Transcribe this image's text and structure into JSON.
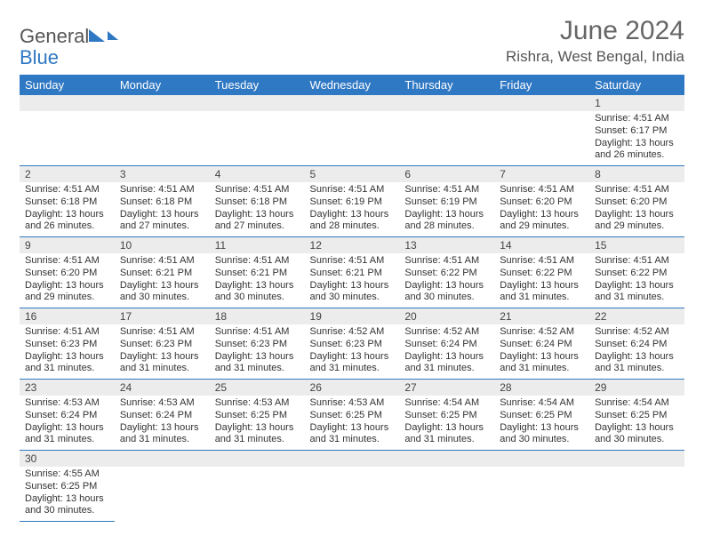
{
  "logo": {
    "part1": "General",
    "part2": "Blue"
  },
  "title": {
    "month": "June 2024",
    "location": "Rishra, West Bengal, India"
  },
  "colors": {
    "header_bg": "#2f78c3",
    "header_fg": "#ffffff",
    "rule": "#2f78c3",
    "numrow_bg": "#ececec",
    "text": "#333333"
  },
  "day_headers": [
    "Sunday",
    "Monday",
    "Tuesday",
    "Wednesday",
    "Thursday",
    "Friday",
    "Saturday"
  ],
  "weeks": [
    [
      null,
      null,
      null,
      null,
      null,
      null,
      {
        "n": "1",
        "sr": "4:51 AM",
        "ss": "6:17 PM",
        "dl": "13 hours and 26 minutes."
      }
    ],
    [
      {
        "n": "2",
        "sr": "4:51 AM",
        "ss": "6:18 PM",
        "dl": "13 hours and 26 minutes."
      },
      {
        "n": "3",
        "sr": "4:51 AM",
        "ss": "6:18 PM",
        "dl": "13 hours and 27 minutes."
      },
      {
        "n": "4",
        "sr": "4:51 AM",
        "ss": "6:18 PM",
        "dl": "13 hours and 27 minutes."
      },
      {
        "n": "5",
        "sr": "4:51 AM",
        "ss": "6:19 PM",
        "dl": "13 hours and 28 minutes."
      },
      {
        "n": "6",
        "sr": "4:51 AM",
        "ss": "6:19 PM",
        "dl": "13 hours and 28 minutes."
      },
      {
        "n": "7",
        "sr": "4:51 AM",
        "ss": "6:20 PM",
        "dl": "13 hours and 29 minutes."
      },
      {
        "n": "8",
        "sr": "4:51 AM",
        "ss": "6:20 PM",
        "dl": "13 hours and 29 minutes."
      }
    ],
    [
      {
        "n": "9",
        "sr": "4:51 AM",
        "ss": "6:20 PM",
        "dl": "13 hours and 29 minutes."
      },
      {
        "n": "10",
        "sr": "4:51 AM",
        "ss": "6:21 PM",
        "dl": "13 hours and 30 minutes."
      },
      {
        "n": "11",
        "sr": "4:51 AM",
        "ss": "6:21 PM",
        "dl": "13 hours and 30 minutes."
      },
      {
        "n": "12",
        "sr": "4:51 AM",
        "ss": "6:21 PM",
        "dl": "13 hours and 30 minutes."
      },
      {
        "n": "13",
        "sr": "4:51 AM",
        "ss": "6:22 PM",
        "dl": "13 hours and 30 minutes."
      },
      {
        "n": "14",
        "sr": "4:51 AM",
        "ss": "6:22 PM",
        "dl": "13 hours and 31 minutes."
      },
      {
        "n": "15",
        "sr": "4:51 AM",
        "ss": "6:22 PM",
        "dl": "13 hours and 31 minutes."
      }
    ],
    [
      {
        "n": "16",
        "sr": "4:51 AM",
        "ss": "6:23 PM",
        "dl": "13 hours and 31 minutes."
      },
      {
        "n": "17",
        "sr": "4:51 AM",
        "ss": "6:23 PM",
        "dl": "13 hours and 31 minutes."
      },
      {
        "n": "18",
        "sr": "4:51 AM",
        "ss": "6:23 PM",
        "dl": "13 hours and 31 minutes."
      },
      {
        "n": "19",
        "sr": "4:52 AM",
        "ss": "6:23 PM",
        "dl": "13 hours and 31 minutes."
      },
      {
        "n": "20",
        "sr": "4:52 AM",
        "ss": "6:24 PM",
        "dl": "13 hours and 31 minutes."
      },
      {
        "n": "21",
        "sr": "4:52 AM",
        "ss": "6:24 PM",
        "dl": "13 hours and 31 minutes."
      },
      {
        "n": "22",
        "sr": "4:52 AM",
        "ss": "6:24 PM",
        "dl": "13 hours and 31 minutes."
      }
    ],
    [
      {
        "n": "23",
        "sr": "4:53 AM",
        "ss": "6:24 PM",
        "dl": "13 hours and 31 minutes."
      },
      {
        "n": "24",
        "sr": "4:53 AM",
        "ss": "6:24 PM",
        "dl": "13 hours and 31 minutes."
      },
      {
        "n": "25",
        "sr": "4:53 AM",
        "ss": "6:25 PM",
        "dl": "13 hours and 31 minutes."
      },
      {
        "n": "26",
        "sr": "4:53 AM",
        "ss": "6:25 PM",
        "dl": "13 hours and 31 minutes."
      },
      {
        "n": "27",
        "sr": "4:54 AM",
        "ss": "6:25 PM",
        "dl": "13 hours and 31 minutes."
      },
      {
        "n": "28",
        "sr": "4:54 AM",
        "ss": "6:25 PM",
        "dl": "13 hours and 30 minutes."
      },
      {
        "n": "29",
        "sr": "4:54 AM",
        "ss": "6:25 PM",
        "dl": "13 hours and 30 minutes."
      }
    ],
    [
      {
        "n": "30",
        "sr": "4:55 AM",
        "ss": "6:25 PM",
        "dl": "13 hours and 30 minutes."
      },
      null,
      null,
      null,
      null,
      null,
      null
    ]
  ],
  "labels": {
    "sunrise": "Sunrise: ",
    "sunset": "Sunset: ",
    "daylight": "Daylight: "
  }
}
